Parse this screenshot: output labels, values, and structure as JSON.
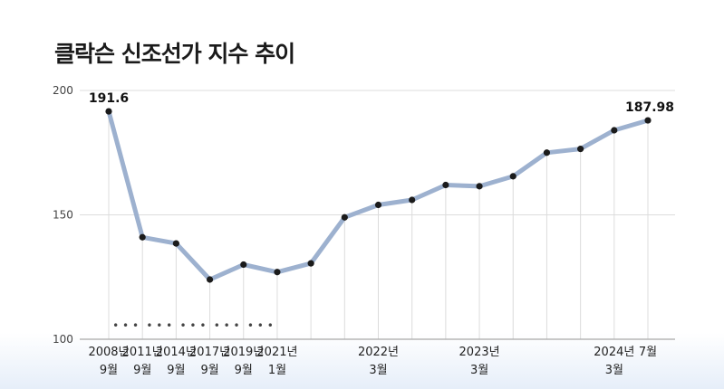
{
  "chart_data": {
    "type": "line",
    "title": "클락슨 신조선가 지수 추이",
    "xlabel": "",
    "ylabel": "",
    "ylim": [
      100,
      200
    ],
    "yticks": [
      "100",
      "150",
      "200"
    ],
    "series": [
      {
        "values": [
          191.6,
          141,
          138.5,
          124,
          130,
          127,
          130.5,
          149,
          154,
          156,
          162,
          161.5,
          165.5,
          175,
          176.5,
          184,
          187.98
        ]
      }
    ],
    "point_labels": [
      {
        "index": 0,
        "text": "191.6"
      },
      {
        "index": 16,
        "text": "187.98"
      }
    ],
    "x_labels": [
      {
        "index": 0,
        "line1": "2008년",
        "line2": "9월"
      },
      {
        "index": 1,
        "line1": "2011년",
        "line2": "9월"
      },
      {
        "index": 2,
        "line1": "2014년",
        "line2": "9월"
      },
      {
        "index": 3,
        "line1": "2017년",
        "line2": "9월"
      },
      {
        "index": 4,
        "line1": "2019년",
        "line2": "9월"
      },
      {
        "index": 5,
        "line1": "2021년",
        "line2": "1월"
      },
      {
        "index": 8,
        "line1": "2022년",
        "line2": "3월"
      },
      {
        "index": 11,
        "line1": "2023년",
        "line2": "3월"
      },
      {
        "index": 15,
        "line1": "2024년",
        "line2": "3월"
      },
      {
        "index": 16,
        "line1": "7월",
        "line2": ""
      }
    ],
    "break_marker": "• • •",
    "break_after_indices": [
      0,
      1,
      2,
      3,
      4
    ],
    "grid": true,
    "colors": {
      "line": "#9db1cf",
      "point": "#1b1b1b",
      "grid": "#dcdcdc",
      "axis": "#a8a8a8",
      "bottom_band": "#eef3fb"
    }
  }
}
